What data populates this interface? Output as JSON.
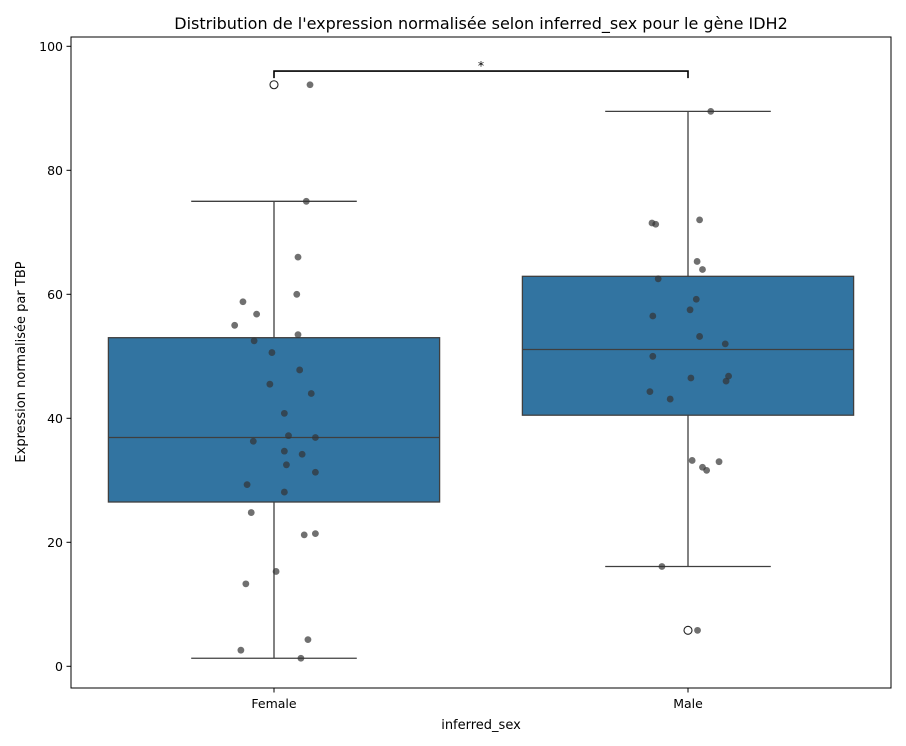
{
  "chart_data": {
    "type": "box",
    "title": "Distribution de l'expression normalisée selon inferred_sex pour le gène IDH2",
    "xlabel": "inferred_sex",
    "ylabel": "Expression normalisée par TBP",
    "categories": [
      "Female",
      "Male"
    ],
    "ylim": [
      -3.5,
      101.5
    ],
    "yticks": [
      0,
      20,
      40,
      60,
      80,
      100
    ],
    "box_color": "#3274a1",
    "point_color": "#333333",
    "boxes": [
      {
        "category": "Female",
        "whisker_low": 1.3,
        "q1": 26.5,
        "median": 36.9,
        "q3": 53.0,
        "whisker_high": 75.0,
        "outliers": [
          93.8
        ]
      },
      {
        "category": "Male",
        "whisker_low": 16.1,
        "q1": 40.5,
        "median": 51.1,
        "q3": 62.9,
        "whisker_high": 89.5,
        "outliers": [
          5.8
        ]
      }
    ],
    "points": [
      {
        "category": "Female",
        "values": [
          93.8,
          75.0,
          66.0,
          60.0,
          58.8,
          56.8,
          55.0,
          53.5,
          52.5,
          50.6,
          47.8,
          45.5,
          44.0,
          40.8,
          37.2,
          36.9,
          36.3,
          34.7,
          34.2,
          32.5,
          31.3,
          29.3,
          28.1,
          24.8,
          21.4,
          21.2,
          15.3,
          13.3,
          4.3,
          2.6,
          1.3
        ],
        "jitter": [
          0.087,
          0.078,
          0.058,
          0.055,
          -0.075,
          -0.042,
          -0.095,
          0.058,
          -0.048,
          -0.005,
          0.062,
          -0.01,
          0.09,
          0.025,
          0.035,
          0.1,
          -0.05,
          0.025,
          0.068,
          0.03,
          0.1,
          -0.065,
          0.025,
          -0.055,
          0.1,
          0.073,
          0.005,
          -0.068,
          0.082,
          -0.08,
          0.065
        ]
      },
      {
        "category": "Male",
        "values": [
          89.5,
          72.0,
          71.5,
          71.3,
          65.3,
          64.0,
          62.5,
          59.2,
          57.5,
          56.5,
          53.2,
          52.0,
          50.0,
          46.8,
          46.5,
          46.0,
          44.3,
          43.1,
          33.2,
          33.0,
          32.1,
          31.6,
          16.1,
          5.8
        ],
        "jitter": [
          0.055,
          0.028,
          -0.087,
          -0.078,
          0.022,
          0.035,
          -0.072,
          0.02,
          0.005,
          -0.085,
          0.028,
          0.09,
          -0.085,
          0.098,
          0.007,
          0.092,
          -0.092,
          -0.043,
          0.01,
          0.075,
          0.035,
          0.045,
          -0.063,
          0.023
        ]
      }
    ],
    "annotation": {
      "text": "*",
      "from": "Female",
      "to": "Male",
      "y": 96.0
    }
  }
}
